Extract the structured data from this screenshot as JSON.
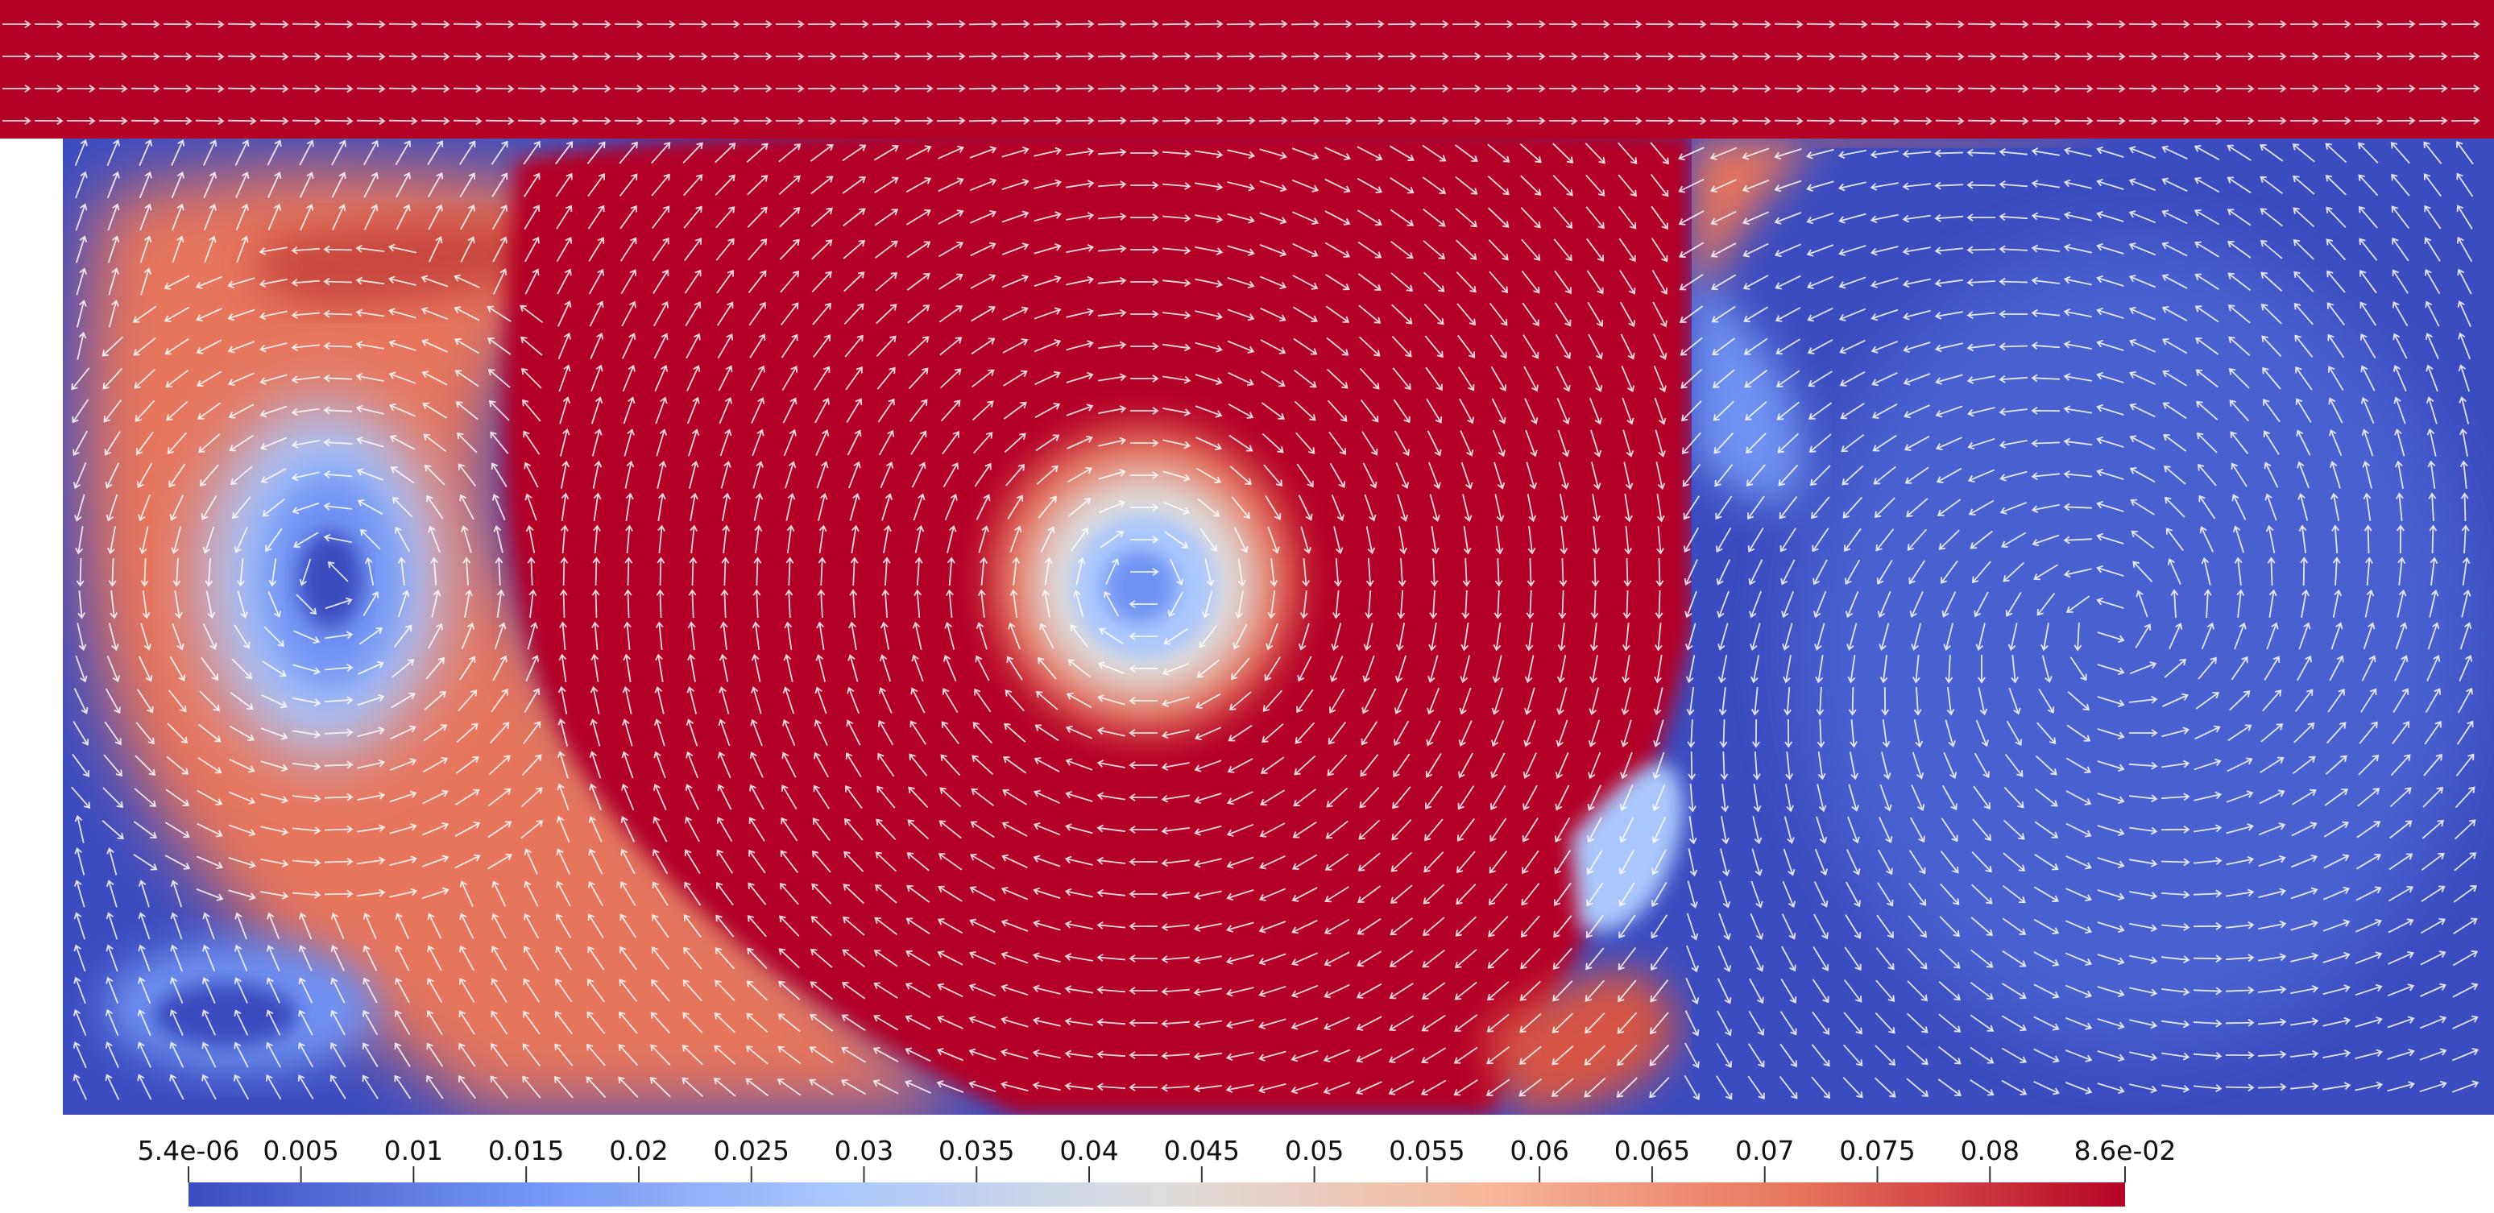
{
  "chart_data": {
    "type": "heatmap",
    "title": "",
    "xlabel": "",
    "ylabel": "",
    "grid": false,
    "colormap": "Cool to Warm",
    "color_range": [
      5.4e-06,
      0.086
    ],
    "colorbar": {
      "orientation": "horizontal",
      "placement": "bottom",
      "tick_labels": [
        "5.4e-06",
        "0.005",
        "0.01",
        "0.015",
        "0.02",
        "0.025",
        "0.03",
        "0.035",
        "0.04",
        "0.045",
        "0.05",
        "0.055",
        "0.06",
        "0.065",
        "0.07",
        "0.075",
        "0.08",
        "8.6e-02"
      ],
      "tick_values": [
        5.4e-06,
        0.005,
        0.01,
        0.015,
        0.02,
        0.025,
        0.03,
        0.035,
        0.04,
        0.045,
        0.05,
        0.055,
        0.06,
        0.065,
        0.07,
        0.075,
        0.08,
        0.086
      ],
      "colors": [
        "#3b4cc0",
        "#6f92f3",
        "#aac7fd",
        "#dddddd",
        "#f7b89c",
        "#e7745b",
        "#b40426"
      ]
    },
    "regions": [
      {
        "name": "top channel",
        "level": "high",
        "flow": "left to right"
      },
      {
        "name": "main cavity vortex",
        "level": "high",
        "flow": "clockwise",
        "core_level": "low"
      },
      {
        "name": "left secondary vortex",
        "level": "mixed",
        "flow": "counter-clockwise",
        "core_level": "low"
      },
      {
        "name": "right cavity",
        "level": "low",
        "flow": "recirculating"
      }
    ],
    "glyphs": "velocity arrows (white)"
  }
}
